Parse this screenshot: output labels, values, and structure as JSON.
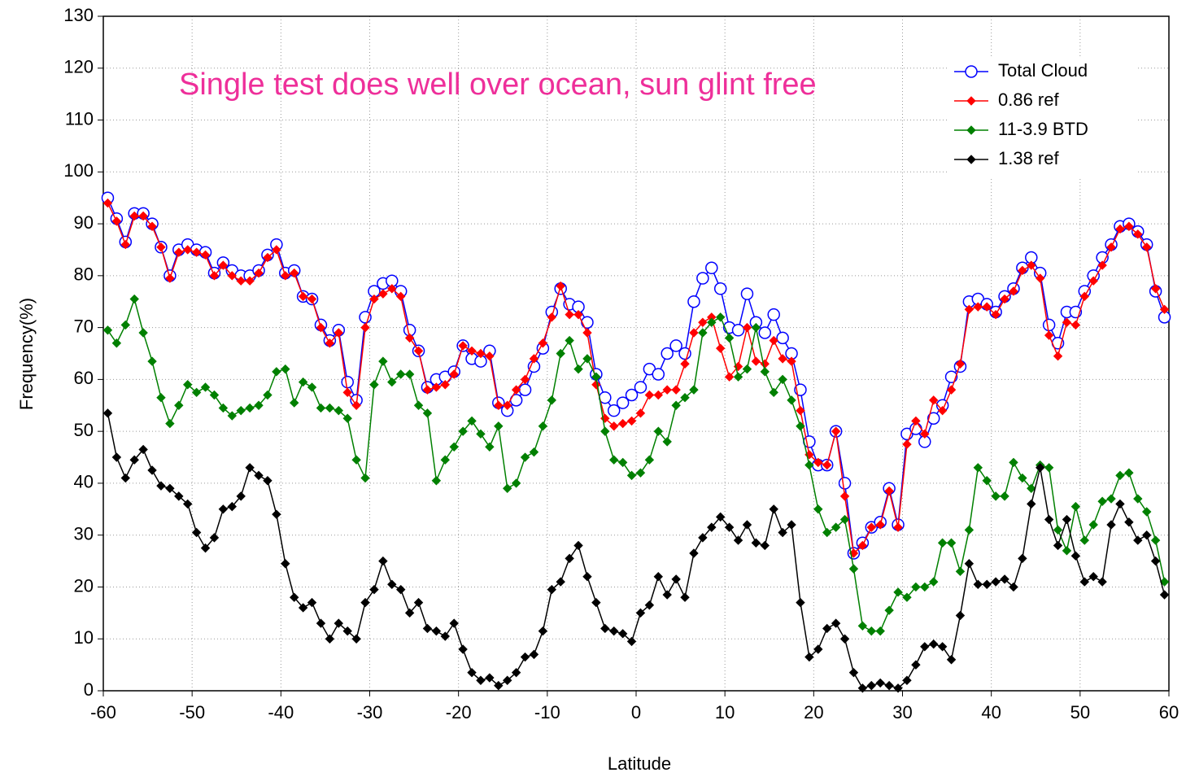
{
  "chart_data": {
    "type": "line",
    "annotation": "Single test does well over ocean, sun glint free",
    "xlabel": "Latitude",
    "ylabel": "Frequency(%)",
    "xlim": [
      -60,
      60
    ],
    "ylim": [
      0,
      130
    ],
    "xticks": [
      -60,
      -50,
      -40,
      -30,
      -20,
      -10,
      0,
      10,
      20,
      30,
      40,
      50,
      60
    ],
    "yticks": [
      0,
      10,
      20,
      30,
      40,
      50,
      60,
      70,
      80,
      90,
      100,
      110,
      120,
      130
    ],
    "grid": true,
    "legend": "upper right",
    "x": [
      -59.5,
      -58.5,
      -57.5,
      -56.5,
      -55.5,
      -54.5,
      -53.5,
      -52.5,
      -51.5,
      -50.5,
      -49.5,
      -48.5,
      -47.5,
      -46.5,
      -45.5,
      -44.5,
      -43.5,
      -42.5,
      -41.5,
      -40.5,
      -39.5,
      -38.5,
      -37.5,
      -36.5,
      -35.5,
      -34.5,
      -33.5,
      -32.5,
      -31.5,
      -30.5,
      -29.5,
      -28.5,
      -27.5,
      -26.5,
      -25.5,
      -24.5,
      -23.5,
      -22.5,
      -21.5,
      -20.5,
      -19.5,
      -18.5,
      -17.5,
      -16.5,
      -15.5,
      -14.5,
      -13.5,
      -12.5,
      -11.5,
      -10.5,
      -9.5,
      -8.5,
      -7.5,
      -6.5,
      -5.5,
      -4.5,
      -3.5,
      -2.5,
      -1.5,
      -0.5,
      0.5,
      1.5,
      2.5,
      3.5,
      4.5,
      5.5,
      6.5,
      7.5,
      8.5,
      9.5,
      10.5,
      11.5,
      12.5,
      13.5,
      14.5,
      15.5,
      16.5,
      17.5,
      18.5,
      19.5,
      20.5,
      21.5,
      22.5,
      23.5,
      24.5,
      25.5,
      26.5,
      27.5,
      28.5,
      29.5,
      30.5,
      31.5,
      32.5,
      33.5,
      34.5,
      35.5,
      36.5,
      37.5,
      38.5,
      39.5,
      40.5,
      41.5,
      42.5,
      43.5,
      44.5,
      45.5,
      46.5,
      47.5,
      48.5,
      49.5,
      50.5,
      51.5,
      52.5,
      53.5,
      54.5,
      55.5,
      56.5,
      57.5,
      58.5,
      59.5
    ],
    "series": [
      {
        "name": "Total Cloud",
        "color": "#0000ff",
        "marker": "circle",
        "values": [
          95,
          91,
          86.5,
          92,
          92,
          90,
          85.5,
          80,
          85,
          86,
          85,
          84.5,
          80.5,
          82.5,
          81,
          80,
          80,
          81,
          84,
          86,
          80.5,
          81,
          76,
          75.5,
          70.5,
          67.5,
          69.5,
          59.5,
          56,
          72,
          77,
          78.5,
          79,
          77,
          69.5,
          65.5,
          58.5,
          60,
          60.5,
          61.5,
          66.5,
          64,
          63.5,
          65.5,
          55.5,
          54,
          56,
          58,
          62.5,
          66,
          73,
          77.5,
          74.5,
          74,
          71,
          61,
          56.5,
          54,
          55.5,
          57,
          58.5,
          62,
          61,
          65,
          66.5,
          65,
          75,
          79.5,
          81.5,
          77.5,
          70,
          69.5,
          76.5,
          71,
          69,
          72.5,
          68,
          65,
          58,
          48,
          43.5,
          43.5,
          50,
          40,
          26.5,
          28.5,
          31.5,
          32.5,
          39,
          32,
          49.5,
          50.5,
          48,
          52.5,
          55,
          60.5,
          62.5,
          75,
          75.5,
          74.5,
          73,
          76,
          77.5,
          81.5,
          83.5,
          80.5,
          70.5,
          67,
          73,
          73,
          77,
          80,
          83.5,
          86,
          89.5,
          90,
          88.5,
          86,
          77,
          72
        ]
      },
      {
        "name": "0.86 ref",
        "color": "#ff0000",
        "marker": "diamond",
        "values": [
          94,
          90.5,
          86,
          91.5,
          91.5,
          89.5,
          85.5,
          79.5,
          84.5,
          85,
          84.5,
          84,
          80,
          82,
          80,
          79,
          79,
          80.5,
          83.5,
          85,
          80,
          80.5,
          76,
          75.5,
          70,
          67,
          69,
          57.5,
          55,
          70,
          75.5,
          76.5,
          77.5,
          76,
          68,
          65.5,
          58,
          58.5,
          59,
          61,
          66.5,
          65.5,
          65,
          64.5,
          55,
          55,
          58,
          60,
          64,
          67,
          72,
          78,
          72.5,
          72.5,
          69,
          59,
          52.5,
          51,
          51.5,
          52,
          53.5,
          57,
          57,
          58,
          58,
          63,
          69,
          71,
          72,
          66,
          60.5,
          62.5,
          70,
          63.5,
          63,
          67.5,
          64,
          63.5,
          54,
          45.5,
          44,
          43.5,
          50,
          37.5,
          26.5,
          28,
          31.5,
          32,
          38.5,
          31.5,
          47.5,
          52,
          49.5,
          56,
          54,
          58,
          63,
          73.5,
          74,
          74,
          72.5,
          75.5,
          77,
          81,
          82,
          79.5,
          68.5,
          64.5,
          71,
          70.5,
          76,
          79,
          82,
          85.5,
          89,
          89.5,
          88,
          85.5,
          77.5,
          73.5
        ]
      },
      {
        "name": "11-3.9 BTD",
        "color": "#008000",
        "marker": "diamond",
        "values": [
          69.5,
          67,
          70.5,
          75.5,
          69,
          63.5,
          56.5,
          51.5,
          55,
          59,
          57.5,
          58.5,
          57,
          54.5,
          53,
          54,
          54.5,
          55,
          57,
          61.5,
          62,
          55.5,
          59.5,
          58.5,
          54.5,
          54.5,
          54,
          52.5,
          44.5,
          41,
          59,
          63.5,
          59.5,
          61,
          61,
          55,
          53.5,
          40.5,
          44.5,
          47,
          50,
          52,
          49.5,
          47,
          51,
          39,
          40,
          45,
          46,
          51,
          56,
          65,
          67.5,
          62,
          64,
          60.5,
          50,
          44.5,
          44,
          41.5,
          42,
          44.5,
          50,
          48,
          55,
          56.5,
          58,
          69,
          71,
          72,
          68,
          60.5,
          62,
          70,
          61.5,
          57.5,
          60,
          56,
          51,
          43.5,
          35,
          30.5,
          31.5,
          33,
          23.5,
          12.5,
          11.5,
          11.5,
          15.5,
          19,
          18,
          20,
          20,
          21,
          28.5,
          28.5,
          23,
          31,
          43,
          40.5,
          37.5,
          37.5,
          44,
          41,
          39,
          43.5,
          43,
          31,
          27,
          35.5,
          29,
          32,
          36.5,
          37,
          41.5,
          42,
          37,
          34.5,
          29,
          21
        ]
      },
      {
        "name": "1.38 ref",
        "color": "#000000",
        "marker": "diamond",
        "values": [
          53.5,
          45,
          41,
          44.5,
          46.5,
          42.5,
          39.5,
          39,
          37.5,
          36,
          30.5,
          27.5,
          29.5,
          35,
          35.5,
          37.5,
          43,
          41.5,
          40.5,
          34,
          24.5,
          18,
          16,
          17,
          13,
          10,
          13,
          11.5,
          10,
          17,
          19.5,
          25,
          20.5,
          19.5,
          15,
          17,
          12,
          11.5,
          10.5,
          13,
          8,
          3.5,
          2,
          2.5,
          1,
          2,
          3.5,
          6.5,
          7,
          11.5,
          19.5,
          21,
          25.5,
          28,
          22,
          17,
          12,
          11.5,
          11,
          9.5,
          15,
          16.5,
          22,
          18.5,
          21.5,
          18,
          26.5,
          29.5,
          31.5,
          33.5,
          31.5,
          29,
          32,
          28.5,
          28,
          35,
          30.5,
          32,
          17,
          6.5,
          8,
          12,
          13,
          10,
          3.5,
          0.5,
          1,
          1.5,
          1,
          0.5,
          2,
          5,
          8.5,
          9,
          8.5,
          6,
          14.5,
          24.5,
          20.5,
          20.5,
          21,
          21.5,
          20,
          25.5,
          36,
          43,
          33,
          28,
          33,
          26,
          21,
          22,
          21,
          32,
          36,
          32.5,
          29,
          30,
          25,
          18.5
        ]
      }
    ]
  }
}
